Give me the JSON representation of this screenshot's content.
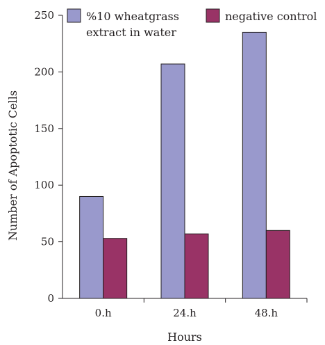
{
  "chart_data": {
    "type": "bar",
    "categories": [
      "0.h",
      "24.h",
      "48.h"
    ],
    "series": [
      {
        "name": "%10 wheatgrass extract in water",
        "legend_lines": [
          "%10 wheatgrass",
          "extract in water"
        ],
        "color": "#9999cc",
        "values": [
          90,
          207,
          235
        ]
      },
      {
        "name": "negative control",
        "legend_lines": [
          "negative control"
        ],
        "color": "#993366",
        "values": [
          53,
          57,
          60
        ]
      }
    ],
    "xlabel": "Hours",
    "ylabel": "Number of Apoptotic Cells",
    "ylim": [
      0,
      250
    ],
    "yticks": [
      0,
      50,
      100,
      150,
      200,
      250
    ],
    "grid": false,
    "legend_position": "top"
  }
}
